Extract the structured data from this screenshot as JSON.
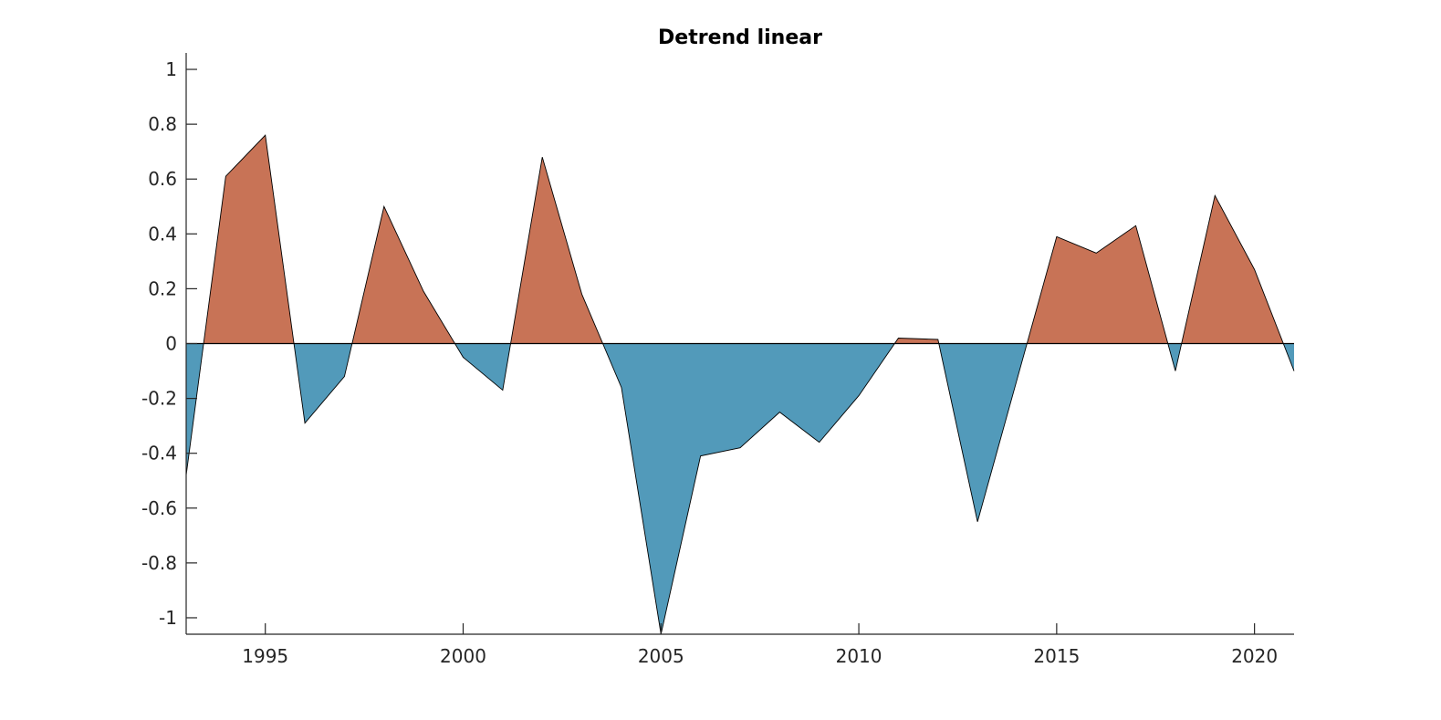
{
  "chart_data": {
    "type": "area",
    "title": "Detrend linear",
    "xlabel": "",
    "ylabel": "",
    "x": [
      1993,
      1994,
      1995,
      1996,
      1997,
      1998,
      1999,
      2000,
      2001,
      2002,
      2003,
      2004,
      2005,
      2006,
      2007,
      2008,
      2009,
      2010,
      2011,
      2012,
      2013,
      2014,
      2015,
      2016,
      2017,
      2018,
      2019,
      2020,
      2021
    ],
    "values": [
      -0.48,
      0.61,
      0.76,
      -0.29,
      -0.12,
      0.5,
      0.19,
      -0.05,
      -0.17,
      0.68,
      0.18,
      -0.16,
      -1.06,
      -0.41,
      -0.38,
      -0.25,
      -0.36,
      -0.19,
      0.02,
      0.015,
      -0.65,
      -0.13,
      0.39,
      0.33,
      0.43,
      -0.1,
      0.54,
      0.27,
      -0.1
    ],
    "xlim": [
      1993,
      2021
    ],
    "ylim": [
      -1.06,
      1.06
    ],
    "xticks": [
      1995,
      2000,
      2005,
      2010,
      2015,
      2020
    ],
    "yticks": [
      -1,
      -0.8,
      -0.6,
      -0.4,
      -0.2,
      0,
      0.2,
      0.4,
      0.6,
      0.8,
      1
    ],
    "positive_color": "#c87356",
    "negative_color": "#529aba",
    "grid": false,
    "legend": "none"
  }
}
